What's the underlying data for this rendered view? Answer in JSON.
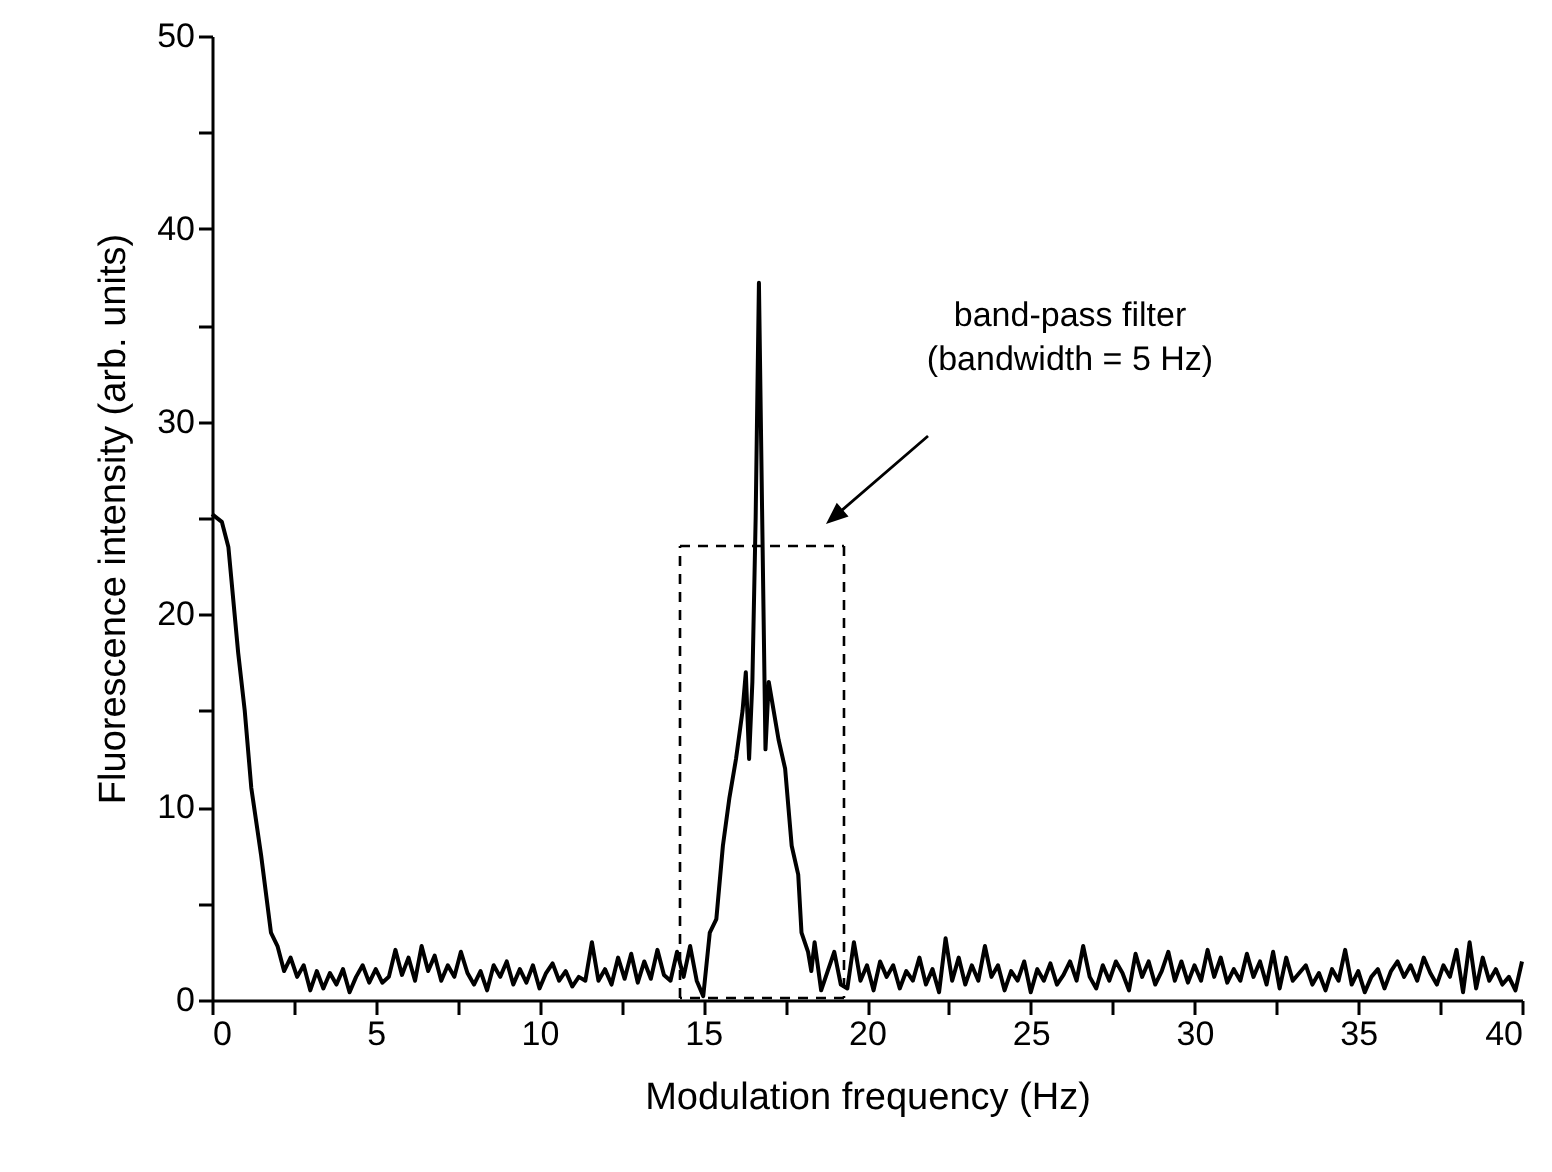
{
  "chart_data": {
    "type": "line",
    "xlabel": "Modulation frequency (Hz)",
    "ylabel": "Fluorescence intensity (arb. units)",
    "xlim": [
      0,
      40
    ],
    "ylim": [
      0,
      50
    ],
    "xticks": [
      0,
      {
        "value": 2.5,
        "label": null
      },
      5,
      {
        "value": 7.5,
        "label": null
      },
      10,
      {
        "value": 12.5,
        "label": null
      },
      15,
      {
        "value": 17.5,
        "label": null
      },
      20,
      {
        "value": 22.5,
        "label": null
      },
      25,
      {
        "value": 27.5,
        "label": null
      },
      30,
      {
        "value": 32.5,
        "label": null
      },
      35,
      {
        "value": 37.5,
        "label": null
      },
      40
    ],
    "yticks": [
      0,
      {
        "value": 5,
        "label": null
      },
      10,
      {
        "value": 15,
        "label": null
      },
      20,
      {
        "value": 25,
        "label": null
      },
      30,
      {
        "value": 35,
        "label": null
      },
      40,
      {
        "value": 45,
        "label": null
      },
      50
    ],
    "grid": false,
    "marker": "none",
    "series": [
      {
        "color": "#000000",
        "line_style": "solid",
        "x": [
          0,
          0.3,
          0.5,
          0.8,
          1.0,
          1.2,
          1.5,
          1.8,
          2.0,
          2.2,
          2.4,
          2.6,
          2.8,
          3.0,
          3.2,
          3.4,
          3.6,
          3.8,
          4.0,
          4.2,
          4.4,
          4.6,
          4.8,
          5.0,
          5.2,
          5.4,
          5.6,
          5.8,
          6.0,
          6.2,
          6.4,
          6.6,
          6.8,
          7.0,
          7.2,
          7.4,
          7.6,
          7.8,
          8.0,
          8.2,
          8.4,
          8.6,
          8.8,
          9.0,
          9.2,
          9.4,
          9.6,
          9.8,
          10.0,
          10.2,
          10.4,
          10.6,
          10.8,
          11.0,
          11.2,
          11.4,
          11.6,
          11.8,
          12.0,
          12.2,
          12.4,
          12.6,
          12.8,
          13.0,
          13.2,
          13.4,
          13.6,
          13.8,
          14.0,
          14.2,
          14.4,
          14.6,
          14.8,
          15.0,
          15.2,
          15.4,
          15.6,
          15.8,
          16.0,
          16.2,
          16.3,
          16.4,
          16.5,
          16.6,
          16.7,
          16.8,
          16.9,
          17.0,
          17.1,
          17.3,
          17.5,
          17.7,
          17.9,
          18.0,
          18.2,
          18.3,
          18.4,
          18.6,
          18.8,
          19.0,
          19.2,
          19.4,
          19.6,
          19.8,
          20.0,
          20.2,
          20.4,
          20.6,
          20.8,
          21.0,
          21.2,
          21.4,
          21.6,
          21.8,
          22.0,
          22.2,
          22.4,
          22.6,
          22.8,
          23.0,
          23.2,
          23.4,
          23.6,
          23.8,
          24.0,
          24.2,
          24.4,
          24.6,
          24.8,
          25.0,
          25.2,
          25.4,
          25.6,
          25.8,
          26.0,
          26.2,
          26.4,
          26.6,
          26.8,
          27.0,
          27.2,
          27.4,
          27.6,
          27.8,
          28.0,
          28.2,
          28.4,
          28.6,
          28.8,
          29.0,
          29.2,
          29.4,
          29.6,
          29.8,
          30.0,
          30.2,
          30.4,
          30.6,
          30.8,
          31.0,
          31.2,
          31.4,
          31.6,
          31.8,
          32.0,
          32.2,
          32.4,
          32.6,
          32.8,
          33.0,
          33.4,
          33.6,
          33.8,
          34.0,
          34.2,
          34.4,
          34.6,
          34.8,
          35.0,
          35.2,
          35.4,
          35.6,
          35.8,
          36.0,
          36.2,
          36.4,
          36.6,
          36.8,
          37.0,
          37.2,
          37.4,
          37.6,
          37.8,
          38.0,
          38.2,
          38.4,
          38.6,
          38.8,
          39.0,
          39.2,
          39.4,
          39.6,
          39.8,
          40.0
        ],
        "values": [
          25.2,
          24.8,
          23.5,
          18,
          15,
          11,
          7.5,
          3.5,
          2.8,
          1.5,
          2.2,
          1.2,
          1.8,
          0.5,
          1.5,
          0.6,
          1.4,
          0.8,
          1.6,
          0.4,
          1.2,
          1.8,
          0.9,
          1.6,
          0.9,
          1.2,
          2.6,
          1.3,
          2.2,
          1.0,
          2.8,
          1.5,
          2.3,
          1.0,
          1.8,
          1.2,
          2.5,
          1.4,
          0.8,
          1.5,
          0.5,
          1.8,
          1.2,
          2.0,
          0.8,
          1.6,
          0.9,
          1.8,
          0.6,
          1.4,
          1.9,
          1.0,
          1.5,
          0.7,
          1.2,
          1.0,
          3.0,
          1.0,
          1.6,
          0.8,
          2.2,
          1.1,
          2.4,
          0.9,
          2.0,
          1.1,
          2.6,
          1.3,
          1.0,
          2.5,
          1.2,
          2.8,
          1.0,
          0.2,
          3.5,
          4.2,
          8,
          10.5,
          12.5,
          15,
          17,
          12.5,
          16.5,
          25,
          37.2,
          25,
          13,
          16.5,
          15.5,
          13.5,
          12,
          8,
          6.5,
          3.5,
          2.5,
          1.5,
          3.0,
          0.5,
          1.5,
          2.5,
          0.8,
          0.6,
          3.0,
          1.0,
          1.8,
          0.5,
          2.0,
          1.2,
          1.8,
          0.6,
          1.5,
          1.0,
          2.2,
          0.8,
          1.6,
          0.4,
          3.2,
          1.0,
          2.2,
          0.8,
          1.8,
          1.0,
          2.8,
          1.2,
          1.8,
          0.5,
          1.5,
          1.0,
          2.0,
          0.4,
          1.6,
          1.0,
          1.9,
          0.8,
          1.3,
          2.0,
          1.0,
          2.8,
          1.2,
          0.6,
          1.8,
          1.0,
          2.0,
          1.4,
          0.5,
          2.4,
          1.2,
          2.0,
          0.8,
          1.5,
          2.5,
          1.0,
          2.0,
          0.9,
          1.8,
          1.0,
          2.6,
          1.2,
          2.2,
          0.9,
          1.6,
          1.0,
          2.4,
          1.2,
          2.0,
          0.8,
          2.5,
          0.6,
          2.2,
          1.0,
          1.8,
          0.8,
          1.4,
          0.5,
          1.6,
          1.0,
          2.6,
          0.8,
          1.5,
          0.4,
          1.2,
          1.6,
          0.6,
          1.5,
          2.0,
          1.2,
          1.8,
          1.0,
          2.2,
          1.4,
          0.8,
          1.8,
          1.2,
          2.6,
          0.4,
          3.0,
          0.6,
          2.2,
          1.0,
          1.6,
          0.8,
          1.2,
          0.5,
          2.0
        ]
      }
    ],
    "annotations": [
      "band-pass filter\n(bandwidth = 5 Hz)"
    ]
  }
}
